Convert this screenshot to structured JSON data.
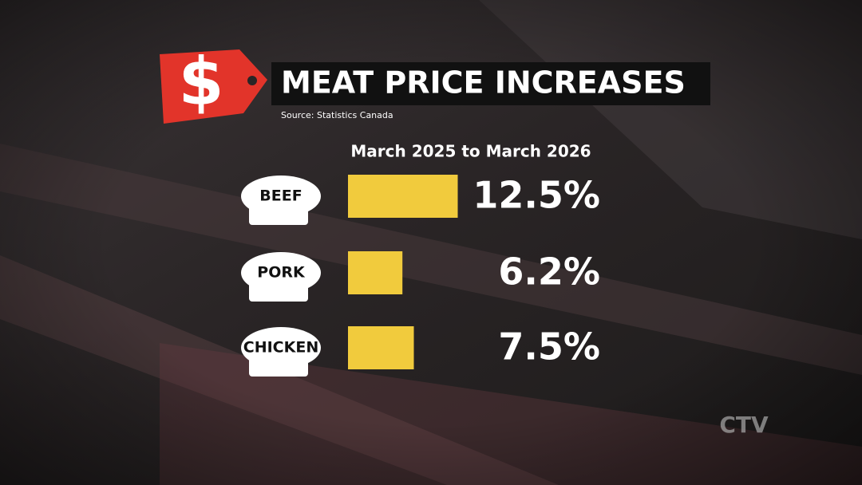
{
  "chart_data": {
    "type": "bar",
    "orientation": "horizontal",
    "title": "MEAT PRICE INCREASES",
    "source": "Source: Statistics Canada",
    "subtitle": "March 2025 to March 2026",
    "categories": [
      "BEEF",
      "PORK",
      "CHICKEN"
    ],
    "values": [
      12.5,
      6.2,
      7.5
    ],
    "value_labels": [
      "12.5%",
      "6.2%",
      "7.5%"
    ],
    "color": "#f1cb3d"
  },
  "icon": "$",
  "watermark": "CTV"
}
